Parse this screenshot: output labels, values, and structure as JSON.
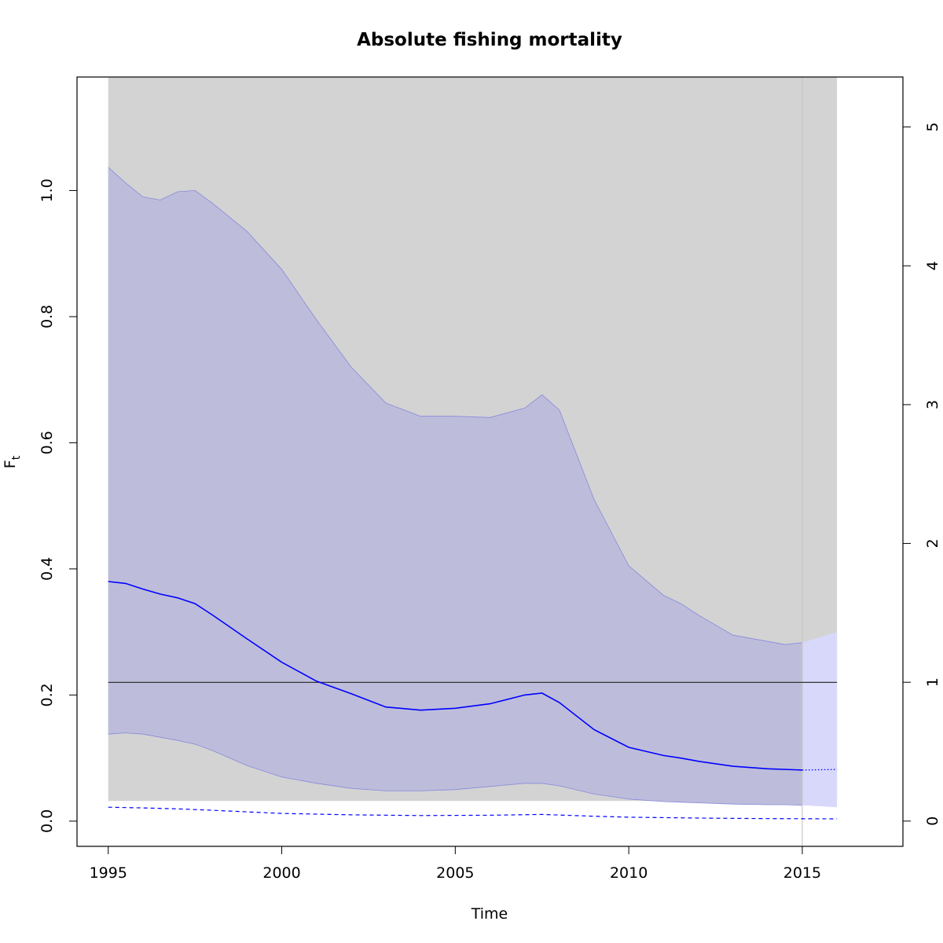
{
  "chart_data": {
    "type": "line",
    "title": "Absolute fishing mortality",
    "xlabel": "Time",
    "ylabel_main": "F",
    "ylabel_sub": "t",
    "xlim": [
      1994.1,
      2017.9
    ],
    "ylim": [
      -0.04,
      1.18
    ],
    "ylim_right": [
      -0.182,
      5.36
    ],
    "x_ticks": [
      1995,
      2000,
      2005,
      2010,
      2015
    ],
    "y_ticks": [
      0.0,
      0.2,
      0.4,
      0.6,
      0.8,
      1.0
    ],
    "y_ticks_right": [
      0,
      1,
      2,
      3,
      4,
      5
    ],
    "x_tick_labels": [
      "1995",
      "2000",
      "2005",
      "2010",
      "2015"
    ],
    "y_tick_labels": [
      "0.0",
      "0.2",
      "0.4",
      "0.6",
      "0.8",
      "1.0"
    ],
    "y_tick_labels_right": [
      "0",
      "1",
      "2",
      "3",
      "4",
      "5"
    ],
    "background_band": {
      "x": [
        1995,
        2016
      ],
      "y_low": 0.032,
      "color": "#d3d3d3"
    },
    "vertical_line": {
      "x": 2015,
      "color": "#c8c8c8"
    },
    "reference_line": {
      "y": 0.22,
      "color": "#333333"
    },
    "ci_band": {
      "color": "#bdbddb",
      "edge_color": "#8888dd",
      "x": [
        1995,
        1995.5,
        1996,
        1996.5,
        1997,
        1997.5,
        1998,
        1999,
        2000,
        2001,
        2002,
        2003,
        2004,
        2005,
        2006,
        2007,
        2007.5,
        2008,
        2009,
        2010,
        2011,
        2011.5,
        2012,
        2013,
        2014,
        2014.5,
        2015
      ],
      "upper": [
        1.037,
        1.012,
        0.99,
        0.985,
        0.998,
        1.0,
        0.98,
        0.935,
        0.875,
        0.795,
        0.72,
        0.663,
        0.642,
        0.642,
        0.64,
        0.655,
        0.676,
        0.652,
        0.51,
        0.405,
        0.358,
        0.345,
        0.327,
        0.295,
        0.285,
        0.28,
        0.283
      ],
      "lower": [
        0.138,
        0.14,
        0.138,
        0.133,
        0.128,
        0.122,
        0.112,
        0.088,
        0.07,
        0.06,
        0.052,
        0.048,
        0.048,
        0.05,
        0.055,
        0.06,
        0.06,
        0.056,
        0.043,
        0.035,
        0.031,
        0.03,
        0.029,
        0.027,
        0.026,
        0.026,
        0.025
      ]
    },
    "ci_band_forecast": {
      "color": "#d8d8fb",
      "x": [
        2015,
        2016
      ],
      "upper": [
        0.283,
        0.3
      ],
      "lower": [
        0.025,
        0.022
      ]
    },
    "series": [
      {
        "color": "#0000ff",
        "style": "solid",
        "x": [
          1995,
          1995.5,
          1996,
          1996.5,
          1997,
          1997.5,
          1998,
          1999,
          2000,
          2001,
          2002,
          2003,
          2004,
          2005,
          2006,
          2007,
          2007.5,
          2008,
          2009,
          2010,
          2011,
          2011.5,
          2012,
          2013,
          2014,
          2015
        ],
        "values": [
          0.38,
          0.377,
          0.368,
          0.36,
          0.354,
          0.345,
          0.327,
          0.289,
          0.252,
          0.222,
          0.202,
          0.181,
          0.176,
          0.179,
          0.186,
          0.2,
          0.203,
          0.188,
          0.145,
          0.117,
          0.104,
          0.1,
          0.095,
          0.087,
          0.083,
          0.081
        ]
      },
      {
        "color": "#0000ff",
        "style": "dotted",
        "x": [
          2015,
          2016
        ],
        "values": [
          0.081,
          0.082
        ]
      },
      {
        "color": "#0000ff",
        "style": "dashed",
        "axis": "right",
        "x": [
          1995,
          1996,
          1997,
          1998,
          2000,
          2002,
          2004,
          2006,
          2007.5,
          2009,
          2010,
          2012,
          2014,
          2016
        ],
        "values": [
          0.1,
          0.095,
          0.088,
          0.078,
          0.055,
          0.045,
          0.04,
          0.042,
          0.048,
          0.035,
          0.028,
          0.022,
          0.018,
          0.016
        ]
      }
    ]
  }
}
